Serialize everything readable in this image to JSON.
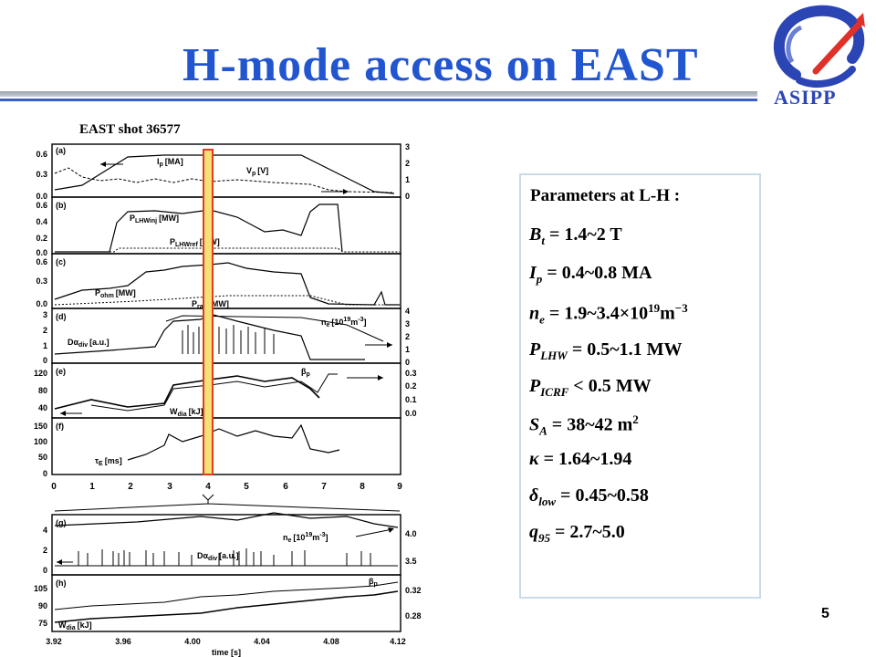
{
  "title": "H-mode access on EAST",
  "logo": {
    "text": "ASIPP",
    "icon": "asipp-logo-icon"
  },
  "slide_number": "5",
  "figure": {
    "shot_label": "EAST shot 36577",
    "top": {
      "x_ticks": [
        "0",
        "1",
        "2",
        "3",
        "4",
        "5",
        "6",
        "7",
        "8",
        "9"
      ],
      "panels": [
        {
          "id": "(a)",
          "left_ticks": [
            "0.6",
            "0.3",
            "0.0"
          ],
          "right_ticks": [
            "3",
            "2",
            "1",
            "0"
          ],
          "labels": [
            "I",
            "p",
            "[MA]",
            "V",
            "p",
            "[V]"
          ]
        },
        {
          "id": "(b)",
          "left_ticks": [
            "0.6",
            "0.4",
            "0.2",
            "0.0"
          ],
          "right_ticks": [],
          "labels": [
            "P",
            "LHWinj",
            "[MW]",
            "P",
            "LHWref",
            "[MW]"
          ]
        },
        {
          "id": "(c)",
          "left_ticks": [
            "0.6",
            "0.3",
            "0.0"
          ],
          "right_ticks": [],
          "labels": [
            "P",
            "ohm",
            "[MW]",
            "P",
            "rad",
            "[MW]"
          ]
        },
        {
          "id": "(d)",
          "left_ticks": [
            "3",
            "2",
            "1",
            "0"
          ],
          "right_ticks": [
            "4",
            "3",
            "2",
            "1",
            "0"
          ],
          "labels": [
            "Dα",
            "div",
            "[a.u.]",
            "n",
            "e",
            "[10",
            "19",
            "m",
            "-3",
            "]"
          ]
        },
        {
          "id": "(e)",
          "left_ticks": [
            "120",
            "80",
            "40"
          ],
          "right_ticks": [
            "0.3",
            "0.2",
            "0.1",
            "0.0"
          ],
          "labels": [
            "β",
            "p",
            "W",
            "dia",
            "[kJ]"
          ]
        },
        {
          "id": "(f)",
          "left_ticks": [
            "150",
            "100",
            "50",
            "0"
          ],
          "right_ticks": [],
          "labels": [
            "τ",
            "E",
            "[ms]"
          ]
        }
      ]
    },
    "bottom": {
      "x_ticks": [
        "3.92",
        "3.96",
        "4.00",
        "4.04",
        "4.08",
        "4.12"
      ],
      "x_label": "time [s]",
      "panels": [
        {
          "id": "(g)",
          "left_ticks": [
            "4",
            "2",
            "0"
          ],
          "right_ticks": [
            "4.0",
            "3.5"
          ],
          "labels": [
            "n",
            "e",
            "[10",
            "19",
            "m",
            "-3",
            "]",
            "Dα",
            "div",
            "[a.u.]"
          ]
        },
        {
          "id": "(h)",
          "left_ticks": [
            "105",
            "90",
            "75"
          ],
          "right_ticks": [
            "0.32",
            "0.28"
          ],
          "labels": [
            "β",
            "p",
            "W",
            "dia",
            "[kJ]"
          ]
        }
      ]
    }
  },
  "parameters": {
    "heading": "Parameters at L-H :",
    "items": [
      {
        "sym": "B",
        "sub": "t",
        "text": " = 1.4~2 T"
      },
      {
        "sym": "I",
        "sub": "p",
        "text": " = 0.4~0.8 MA"
      },
      {
        "sym": "n",
        "sub": "e",
        "text": " = 1.9~3.4×10",
        "sup": "19",
        "text2": "m",
        "sup2": "−3"
      },
      {
        "sym": "P",
        "sub": "LHW",
        "text": " = 0.5~1.1 MW"
      },
      {
        "sym": "P",
        "sub": "ICRF",
        "text": " < 0.5 MW"
      },
      {
        "sym": "S",
        "sub": "A",
        "text": " = 38~42 m",
        "sup": "2"
      },
      {
        "sym": "κ",
        "text": " = 1.64~1.94"
      },
      {
        "sym": "δ",
        "sub": "low",
        "text": " = 0.45~0.58"
      },
      {
        "sym": "q",
        "sub": "95",
        "text": " = 2.7~5.0"
      }
    ]
  },
  "colors": {
    "title": "#2255d0",
    "highlight_fill": "#f5e17a",
    "highlight_stroke": "#e53a1c",
    "box_border": "#c8dce8"
  }
}
